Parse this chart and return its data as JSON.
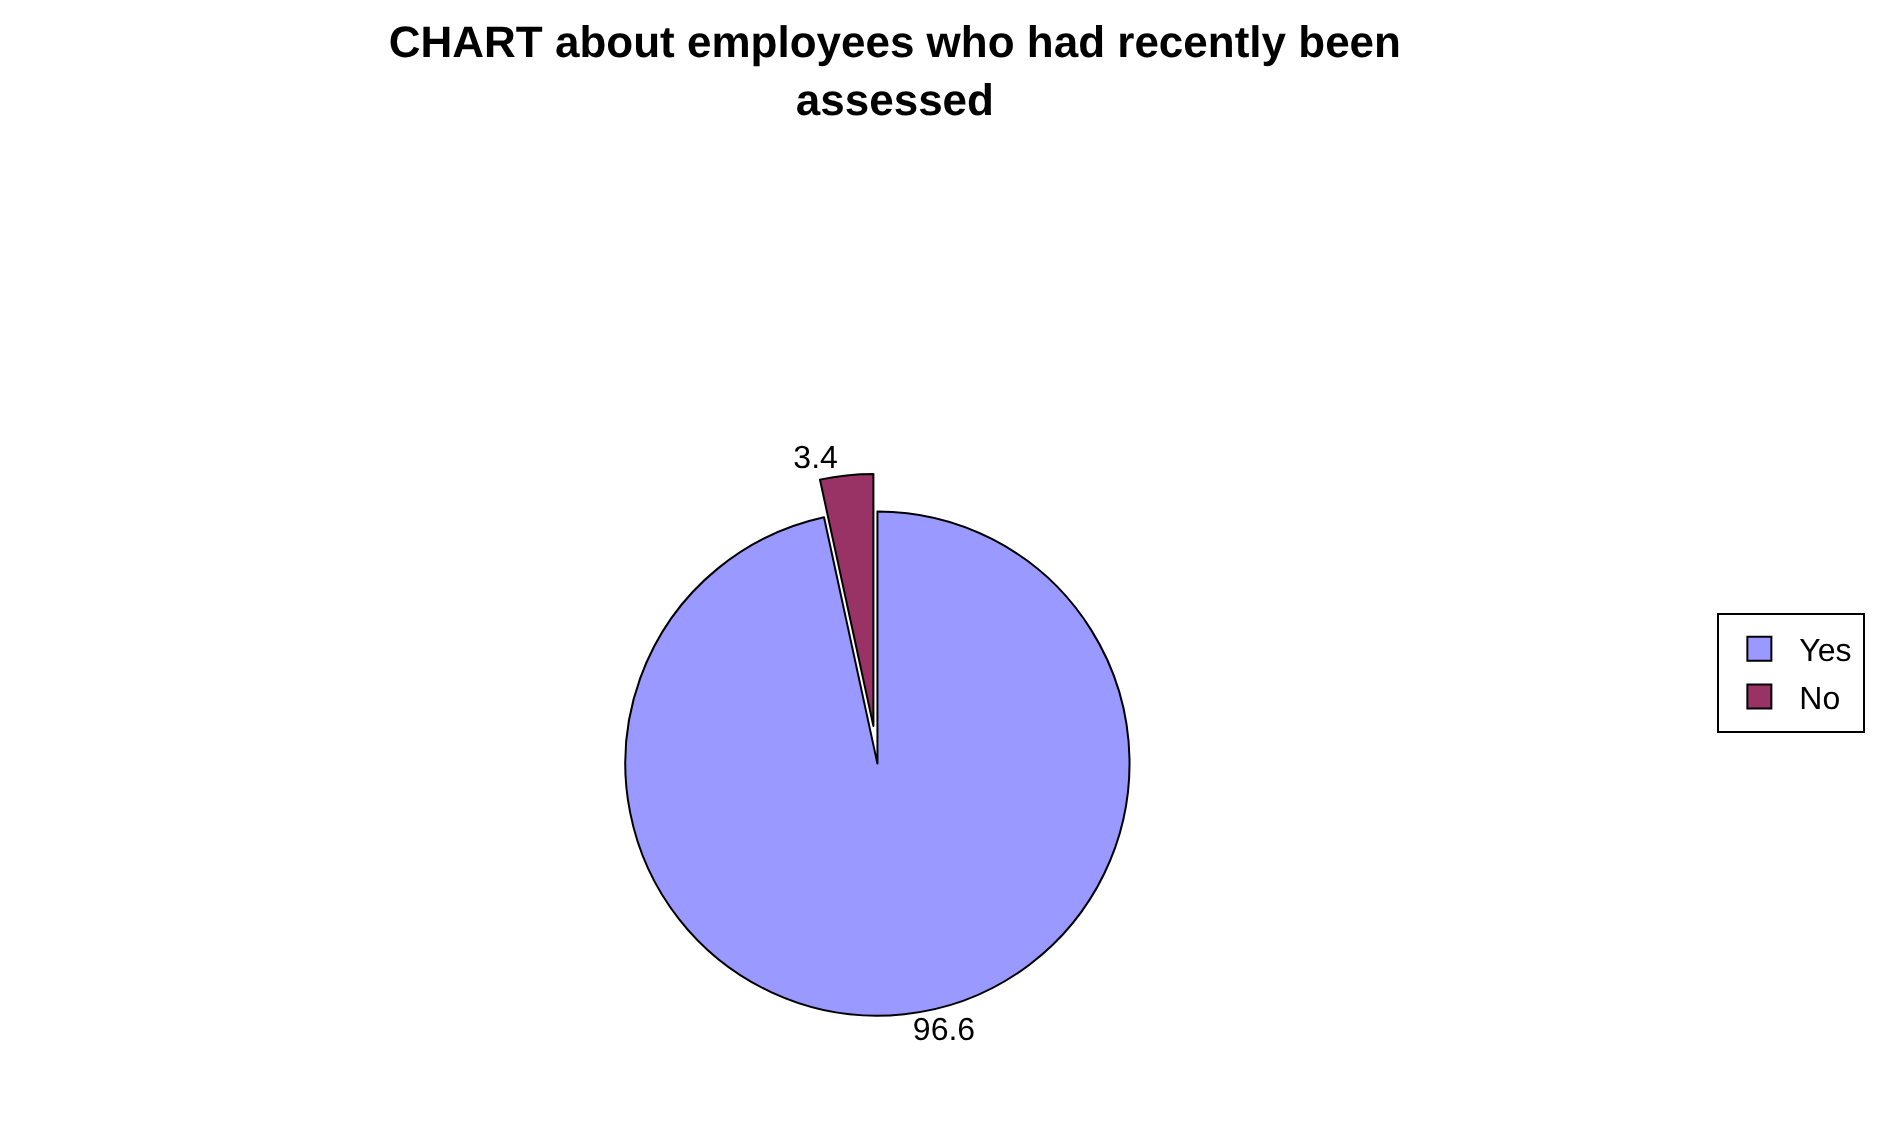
{
  "chart_data": {
    "type": "pie",
    "title": "CHART about employees who had recently been assessed",
    "categories": [
      "Yes",
      "No"
    ],
    "values": [
      96.6,
      3.4
    ],
    "colors": [
      "#9999ff",
      "#993366"
    ],
    "data_labels": true,
    "legend": "right"
  }
}
